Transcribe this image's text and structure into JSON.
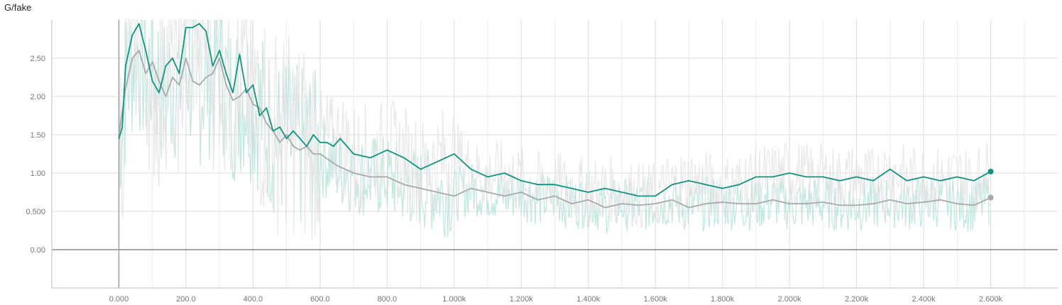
{
  "chart_data": {
    "type": "line",
    "title": "G/fake",
    "xlabel": "",
    "ylabel": "",
    "xlim": [
      -200,
      2800
    ],
    "ylim": [
      -0.5,
      3.0
    ],
    "grid": true,
    "x_ticks": [
      0,
      200,
      400,
      600,
      800,
      1000,
      1200,
      1400,
      1600,
      1800,
      2000,
      2200,
      2400,
      2600
    ],
    "x_tick_labels": [
      "0.000",
      "200.0",
      "400.0",
      "600.0",
      "800.0",
      "1.000k",
      "1.200k",
      "1.400k",
      "1.600k",
      "1.800k",
      "2.000k",
      "2.200k",
      "2.400k",
      "2.600k"
    ],
    "y_ticks": [
      0,
      0.5,
      1.0,
      1.5,
      2.0,
      2.5
    ],
    "y_tick_labels": [
      "0.00",
      "0.500",
      "1.00",
      "1.50",
      "2.00",
      "2.50"
    ],
    "colors": {
      "series_a": "#12937f",
      "series_b": "#a9a9a9",
      "grid": "#dddddd",
      "axis": "#9e9e9e"
    },
    "series": [
      {
        "color": "#12937f",
        "x": [
          0,
          10,
          20,
          40,
          60,
          80,
          100,
          120,
          140,
          160,
          180,
          200,
          220,
          240,
          260,
          280,
          300,
          320,
          340,
          360,
          380,
          400,
          420,
          440,
          460,
          480,
          500,
          520,
          540,
          560,
          580,
          600,
          620,
          640,
          660,
          700,
          750,
          800,
          850,
          900,
          950,
          1000,
          1050,
          1100,
          1150,
          1200,
          1250,
          1300,
          1350,
          1400,
          1450,
          1500,
          1550,
          1600,
          1650,
          1700,
          1750,
          1800,
          1850,
          1900,
          1950,
          2000,
          2050,
          2100,
          2150,
          2200,
          2250,
          2300,
          2350,
          2400,
          2450,
          2500,
          2550,
          2600
        ],
        "y": [
          1.45,
          1.6,
          2.4,
          2.8,
          2.95,
          2.6,
          2.2,
          2.05,
          2.4,
          2.5,
          2.3,
          2.9,
          2.9,
          2.95,
          2.85,
          2.4,
          2.6,
          2.3,
          2.05,
          2.55,
          2.05,
          2.15,
          1.75,
          1.85,
          1.55,
          1.6,
          1.45,
          1.55,
          1.45,
          1.35,
          1.5,
          1.4,
          1.4,
          1.35,
          1.45,
          1.25,
          1.2,
          1.3,
          1.2,
          1.05,
          1.15,
          1.25,
          1.05,
          0.95,
          1.0,
          0.9,
          0.85,
          0.85,
          0.8,
          0.75,
          0.8,
          0.75,
          0.7,
          0.7,
          0.85,
          0.9,
          0.85,
          0.8,
          0.85,
          0.95,
          0.95,
          1.0,
          0.95,
          0.95,
          0.9,
          0.95,
          0.9,
          1.05,
          0.9,
          0.95,
          0.9,
          0.95,
          0.9,
          1.02
        ]
      },
      {
        "color": "#a9a9a9",
        "x": [
          0,
          20,
          40,
          60,
          80,
          100,
          120,
          140,
          160,
          180,
          200,
          220,
          240,
          260,
          280,
          300,
          320,
          340,
          360,
          380,
          400,
          420,
          440,
          460,
          480,
          500,
          520,
          540,
          560,
          580,
          600,
          650,
          700,
          750,
          800,
          850,
          900,
          950,
          1000,
          1050,
          1100,
          1150,
          1200,
          1250,
          1300,
          1350,
          1400,
          1450,
          1500,
          1550,
          1600,
          1650,
          1700,
          1750,
          1800,
          1850,
          1900,
          1950,
          2000,
          2050,
          2100,
          2150,
          2200,
          2250,
          2300,
          2350,
          2400,
          2450,
          2500,
          2550,
          2600
        ],
        "y": [
          1.5,
          2.1,
          2.5,
          2.6,
          2.3,
          2.45,
          2.2,
          2.0,
          2.25,
          2.15,
          2.5,
          2.2,
          2.15,
          2.25,
          2.3,
          2.5,
          2.15,
          1.95,
          2.0,
          2.1,
          1.9,
          1.85,
          1.65,
          1.55,
          1.4,
          1.5,
          1.35,
          1.3,
          1.35,
          1.25,
          1.25,
          1.1,
          1.0,
          0.95,
          0.95,
          0.85,
          0.8,
          0.75,
          0.7,
          0.8,
          0.75,
          0.7,
          0.75,
          0.65,
          0.7,
          0.6,
          0.65,
          0.55,
          0.6,
          0.58,
          0.6,
          0.65,
          0.55,
          0.6,
          0.62,
          0.6,
          0.6,
          0.65,
          0.6,
          0.6,
          0.62,
          0.58,
          0.58,
          0.6,
          0.65,
          0.6,
          0.62,
          0.65,
          0.6,
          0.58,
          0.68
        ]
      }
    ]
  }
}
